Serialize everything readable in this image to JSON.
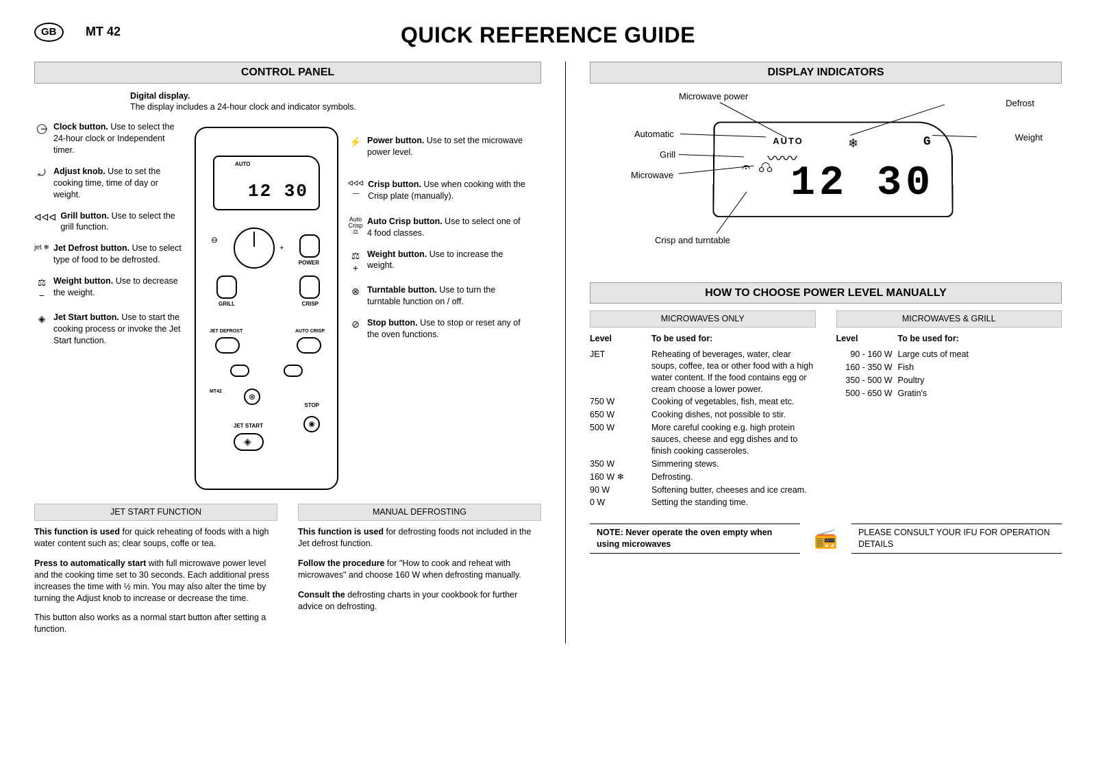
{
  "header": {
    "gb": "GB",
    "model": "MT 42",
    "title": "QUICK REFERENCE GUIDE"
  },
  "control_panel": {
    "title": "CONTROL PANEL",
    "digital_display": {
      "label": "Digital display.",
      "text": "The display includes a 24-hour clock and indicator symbols."
    },
    "left_descs": [
      {
        "icon": "◯̶",
        "bold": "Clock button.",
        "text": " Use to select the 24-hour clock or Independent timer."
      },
      {
        "icon": "⤾",
        "bold": "Adjust knob.",
        "text": " Use to set the cooking time, time of day or weight."
      },
      {
        "icon": "ᐊᐊᐊ",
        "bold": "Grill button.",
        "text": " Use to select the grill function."
      },
      {
        "icon": "jet ❄",
        "bold": "Jet Defrost button.",
        "text": " Use to select type of food to be defrosted."
      },
      {
        "icon": "⚖ −",
        "bold": "Weight button.",
        "text": " Use to decrease the weight."
      },
      {
        "icon": "◈",
        "bold": "Jet Start button.",
        "text": " Use to start the cooking process or invoke the Jet Start function."
      }
    ],
    "right_descs": [
      {
        "icon": "⚡",
        "bold": "Power button.",
        "text": " Use to set the microwave power level."
      },
      {
        "icon": "ᐊᐊᐊ —",
        "bold": "Crisp button.",
        "text": " Use when cooking with the Crisp plate (manually)."
      },
      {
        "icon": "Auto Crisp ⚖",
        "bold": "Auto Crisp button.",
        "text": " Use to select one of 4 food classes."
      },
      {
        "icon": "⚖ +",
        "bold": "Weight button.",
        "text": " Use to increase the weight."
      },
      {
        "icon": "⊗",
        "bold": "Turntable button.",
        "text": " Use to turn the turntable function on / off."
      },
      {
        "icon": "⊘",
        "bold": "Stop button.",
        "text": " Use to stop or reset any of the oven functions."
      }
    ],
    "panel_display": {
      "digits": "12 30",
      "auto": "AUTO"
    },
    "panel_labels": {
      "power": "POWER",
      "grill": "GRILL",
      "crisp": "CRISP",
      "jet_defrost": "JET DEFROST",
      "auto_crisp": "AUTO CRISP",
      "stop": "STOP",
      "jet_start": "JET START",
      "mt42": "MT42"
    }
  },
  "jet_start": {
    "title": "JET START FUNCTION",
    "p1_bold": "This function is used",
    "p1": " for quick reheating of foods with a high water content such as; clear soups, coffe or tea.",
    "p2_bold": "Press to automatically start",
    "p2": " with full microwave power level and the cooking time set to 30 seconds. Each additional press increases the time with ½ min. You may also alter the time by turning the Adjust knob to increase or decrease the time.",
    "p3": "This button also works as a normal start button after setting a function."
  },
  "manual_defrost": {
    "title": "MANUAL DEFROSTING",
    "p1_bold": "This function is used",
    "p1": " for defrosting foods not included in the Jet defrost function.",
    "p2_bold": "Follow the procedure",
    "p2": " for \"How to cook and reheat with microwaves\" and choose 160 W when defrosting manually.",
    "p3_bold": "Consult the",
    "p3": " defrosting charts in your cookbook for further advice on defrosting."
  },
  "display_indicators": {
    "title": "DISPLAY INDICATORS",
    "labels": {
      "mw_power": "Microwave power",
      "automatic": "Automatic",
      "grill": "Grill",
      "microwave": "Microwave",
      "crisp": "Crisp and turntable",
      "defrost": "Defrost",
      "weight": "Weight"
    },
    "digits": "12  30",
    "auto": "AUTO"
  },
  "power_level": {
    "title": "HOW TO CHOOSE POWER LEVEL MANUALLY",
    "mw_only": {
      "heading": "MICROWAVES ONLY",
      "col1": "Level",
      "col2": "To be used for:",
      "rows": [
        {
          "level": "JET",
          "use": "Reheating of beverages, water, clear soups, coffee, tea or other food with a high water content. If the food contains egg or cream choose a lower power."
        },
        {
          "level": "750 W",
          "use": "Cooking of vegetables, fish, meat etc."
        },
        {
          "level": "650 W",
          "use": "Cooking dishes, not possible to stir."
        },
        {
          "level": "500 W",
          "use": "More careful cooking e.g. high protein sauces, cheese and egg dishes and to finish cooking casseroles."
        },
        {
          "level": "350 W",
          "use": "Simmering stews."
        },
        {
          "level": "160 W  ❄",
          "use": "Defrosting."
        },
        {
          "level": "90 W",
          "use": "Softening butter, cheeses and ice cream."
        },
        {
          "level": "0 W",
          "use": "Setting the standing time."
        }
      ]
    },
    "mw_grill": {
      "heading": "MICROWAVES & GRILL",
      "col1": "Level",
      "col2": "To be used for:",
      "rows": [
        {
          "level": "90 - 160 W",
          "use": "Large cuts of meat"
        },
        {
          "level": "160 - 350 W",
          "use": "Fish"
        },
        {
          "level": "350 - 500 W",
          "use": "Poultry"
        },
        {
          "level": "500 - 650 W",
          "use": "Gratin's"
        }
      ]
    }
  },
  "footer": {
    "note": "NOTE: Never operate the oven empty when using microwaves",
    "consult": "PLEASE CONSULT YOUR IFU FOR OPERATION DETAILS"
  }
}
